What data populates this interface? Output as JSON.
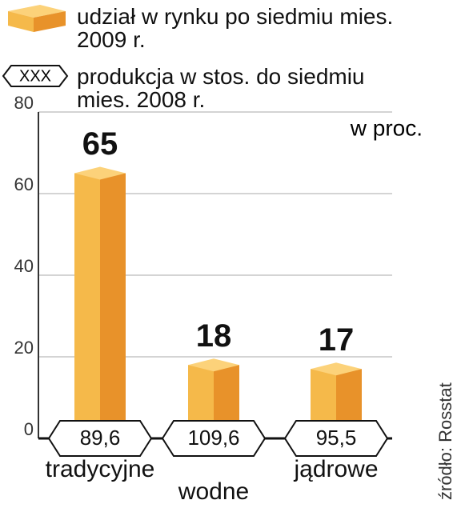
{
  "chart_data": {
    "type": "bar",
    "categories": [
      "tradycyjne",
      "wodne",
      "jądrowe"
    ],
    "series": [
      {
        "name": "udział w rynku po siedmiu mies. 2009 r.",
        "color": "#f3b340",
        "values": [
          65,
          18,
          17
        ]
      },
      {
        "name": "produkcja w stos. do siedmiu mies. 2008 r.",
        "values": [
          89.6,
          109.6,
          95.5
        ],
        "value_labels": [
          "89,6",
          "109,6",
          "95,5"
        ]
      }
    ],
    "legend_symbol_text": "XXX",
    "unit_note": "w proc.",
    "source": "źródło: Rosstat",
    "ylim": [
      0,
      80
    ],
    "yticks": [
      0,
      20,
      40,
      60,
      80
    ],
    "grid": true
  }
}
